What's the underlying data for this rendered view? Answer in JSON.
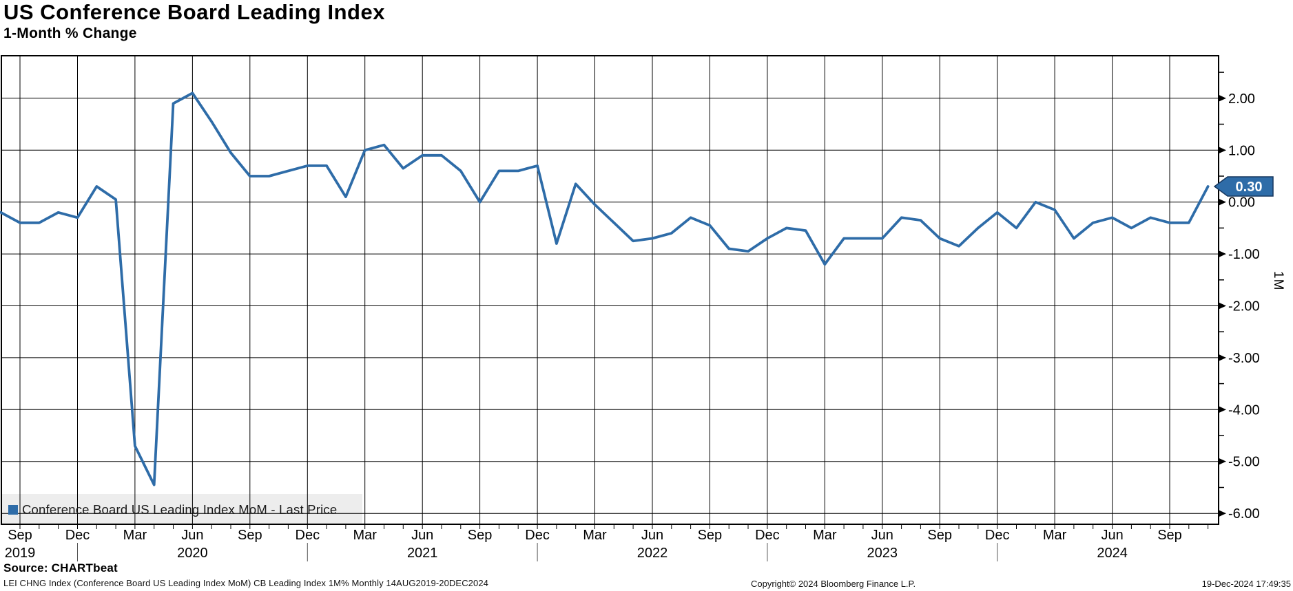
{
  "header": {
    "title": "US Conference Board Leading Index",
    "subtitle": "1-Month % Change"
  },
  "legend": {
    "label": "Conference Board US Leading Index MoM - Last Price"
  },
  "right_axis": {
    "unit_label": "1M"
  },
  "source_line": "Source: CHARTbeat",
  "footer": {
    "left": "LEI CHNG Index (Conference Board US Leading Index MoM) CB Leading Index 1M%  Monthly 14AUG2019-20DEC2024",
    "center": "Copyright© 2024 Bloomberg Finance L.P.",
    "right": "19-Dec-2024 17:49:35"
  },
  "colors": {
    "line": "#2e6ca8",
    "badge_fill": "#2e6ca8",
    "badge_border": "#17375e",
    "badge_text": "#ffffff",
    "grid": "#000000",
    "legend_bg": "#ededed",
    "text": "#000000"
  },
  "chart_data": {
    "type": "line",
    "title": "US Conference Board Leading Index",
    "subtitle": "1-Month % Change",
    "ylabel": "1M",
    "grid": true,
    "legend_position": "bottom-left-inside",
    "frequency": "monthly",
    "period": "14AUG2019-20DEC2024",
    "series": [
      {
        "name": "Conference Board US Leading Index MoM - Last Price",
        "start_month": "2019-08",
        "values": [
          -0.2,
          -0.4,
          -0.4,
          -0.2,
          -0.3,
          0.3,
          0.05,
          -4.7,
          -5.45,
          1.9,
          2.1,
          1.55,
          0.95,
          0.5,
          0.5,
          0.6,
          0.7,
          0.7,
          0.1,
          1.0,
          1.1,
          0.65,
          0.9,
          0.9,
          0.6,
          0.0,
          0.6,
          0.6,
          0.7,
          -0.8,
          0.35,
          -0.05,
          -0.4,
          -0.75,
          -0.7,
          -0.6,
          -0.3,
          -0.45,
          -0.9,
          -0.95,
          -0.7,
          -0.5,
          -0.55,
          -1.2,
          -0.7,
          -0.7,
          -0.7,
          -0.3,
          -0.35,
          -0.7,
          -0.85,
          -0.5,
          -0.2,
          -0.5,
          0.0,
          -0.15,
          -0.7,
          -0.4,
          -0.3,
          -0.5,
          -0.3,
          -0.4,
          -0.4,
          0.3
        ]
      }
    ],
    "last_value": 0.3,
    "last_value_label": "0.30",
    "x_ticks": [
      {
        "m": "Sep",
        "year": "2019"
      },
      {
        "m": "Dec"
      },
      {
        "m": "Mar"
      },
      {
        "m": "Jun",
        "year": "2020"
      },
      {
        "m": "Sep"
      },
      {
        "m": "Dec"
      },
      {
        "m": "Mar"
      },
      {
        "m": "Jun",
        "year": "2021"
      },
      {
        "m": "Sep"
      },
      {
        "m": "Dec"
      },
      {
        "m": "Mar"
      },
      {
        "m": "Jun",
        "year": "2022"
      },
      {
        "m": "Sep"
      },
      {
        "m": "Dec"
      },
      {
        "m": "Mar"
      },
      {
        "m": "Jun",
        "year": "2023"
      },
      {
        "m": "Sep"
      },
      {
        "m": "Dec"
      },
      {
        "m": "Mar"
      },
      {
        "m": "Jun",
        "year": "2024"
      },
      {
        "m": "Sep"
      }
    ],
    "year_separator_tick_indices": [
      1,
      5,
      9,
      13,
      17
    ],
    "y_ticks": [
      2,
      1,
      0,
      -1,
      -2,
      -3,
      -4,
      -5,
      -6
    ],
    "y_tick_labels": [
      "2.00",
      "1.00",
      "0.00",
      "-1.00",
      "-2.00",
      "-3.00",
      "-4.00",
      "-5.00",
      "-6.00"
    ],
    "y_minor_ticks": [
      2.5,
      1.5,
      0.5,
      -0.5,
      -1.5,
      -2.5,
      -3.5,
      -4.5,
      -5.5
    ],
    "ylim": [
      -6.21,
      2.82
    ]
  }
}
